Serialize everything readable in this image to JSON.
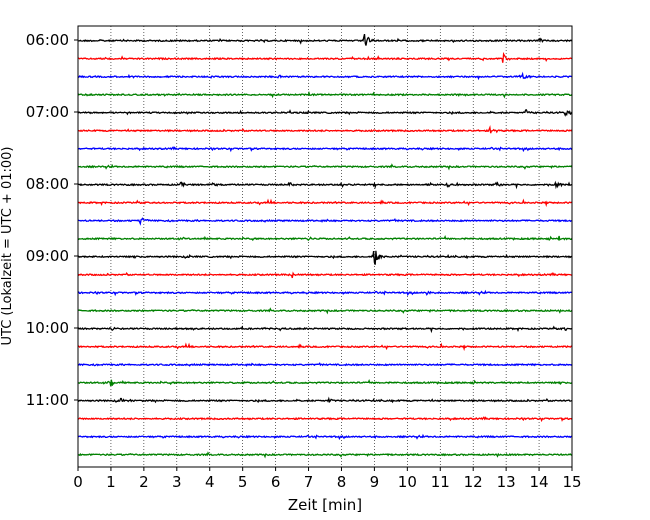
{
  "chart_data": {
    "type": "line",
    "title": "",
    "xlabel": "Zeit  [min]",
    "ylabel": "UTC (Lokalzeit = UTC + 01:00)",
    "xlim": [
      0,
      15
    ],
    "x_ticks": [
      0,
      1,
      2,
      3,
      4,
      5,
      6,
      7,
      8,
      9,
      10,
      11,
      12,
      13,
      14,
      15
    ],
    "x_tick_labels": [
      "0",
      "1",
      "2",
      "3",
      "4",
      "5",
      "6",
      "7",
      "8",
      "9",
      "10",
      "11",
      "12",
      "13",
      "14",
      "15"
    ],
    "y_tick_labels": [
      {
        "row": 0,
        "label": "06:00"
      },
      {
        "row": 4,
        "label": "07:00"
      },
      {
        "row": 8,
        "label": "08:00"
      },
      {
        "row": 12,
        "label": "09:00"
      },
      {
        "row": 16,
        "label": "10:00"
      },
      {
        "row": 20,
        "label": "11:00"
      }
    ],
    "vertical_grid": true,
    "trace_colors": [
      "#000000",
      "#ff0000",
      "#0000ff",
      "#008000"
    ],
    "series": [
      {
        "start": "06:00",
        "events": [
          {
            "t": 8.7,
            "amp": 1.0
          },
          {
            "t": 14.0,
            "amp": 0.25
          }
        ]
      },
      {
        "start": "06:15",
        "events": [
          {
            "t": 12.9,
            "amp": 0.7
          }
        ]
      },
      {
        "start": "06:30",
        "events": [
          {
            "t": 6.1,
            "amp": 0.3
          },
          {
            "t": 13.5,
            "amp": 0.35
          }
        ]
      },
      {
        "start": "06:45",
        "events": []
      },
      {
        "start": "07:00",
        "events": [
          {
            "t": 13.6,
            "amp": 0.3
          },
          {
            "t": 14.8,
            "amp": 0.45
          }
        ]
      },
      {
        "start": "07:15",
        "events": [
          {
            "t": 12.5,
            "amp": 0.4
          }
        ]
      },
      {
        "start": "07:30",
        "events": []
      },
      {
        "start": "07:45",
        "events": []
      },
      {
        "start": "08:00",
        "events": [
          {
            "t": 3.1,
            "amp": 0.35
          },
          {
            "t": 4.1,
            "amp": 0.4
          },
          {
            "t": 6.4,
            "amp": 0.25
          },
          {
            "t": 8.0,
            "amp": 0.3
          },
          {
            "t": 9.0,
            "amp": 0.25
          },
          {
            "t": 11.2,
            "amp": 0.25
          },
          {
            "t": 12.7,
            "amp": 0.35
          },
          {
            "t": 14.5,
            "amp": 0.3
          }
        ]
      },
      {
        "start": "08:15",
        "events": []
      },
      {
        "start": "08:30",
        "events": [
          {
            "t": 1.9,
            "amp": 0.6
          }
        ]
      },
      {
        "start": "08:45",
        "events": [
          {
            "t": 7.0,
            "amp": 0.2
          },
          {
            "t": 14.6,
            "amp": 0.3
          }
        ]
      },
      {
        "start": "09:00",
        "events": [
          {
            "t": 9.0,
            "amp": 1.3
          }
        ]
      },
      {
        "start": "09:15",
        "events": [
          {
            "t": 6.5,
            "amp": 0.3
          }
        ]
      },
      {
        "start": "09:30",
        "events": [
          {
            "t": 10.6,
            "amp": 0.3
          }
        ]
      },
      {
        "start": "09:45",
        "events": []
      },
      {
        "start": "10:00",
        "events": [
          {
            "t": 1.0,
            "amp": 0.25
          },
          {
            "t": 14.8,
            "amp": 0.25
          }
        ]
      },
      {
        "start": "10:15",
        "events": []
      },
      {
        "start": "10:30",
        "events": []
      },
      {
        "start": "10:45",
        "events": [
          {
            "t": 1.0,
            "amp": 0.35
          }
        ]
      },
      {
        "start": "11:00",
        "events": [
          {
            "t": 1.3,
            "amp": 0.25
          },
          {
            "t": 7.6,
            "amp": 0.2
          }
        ]
      },
      {
        "start": "11:15",
        "events": []
      },
      {
        "start": "11:30",
        "events": []
      },
      {
        "start": "11:45",
        "events": []
      }
    ]
  }
}
